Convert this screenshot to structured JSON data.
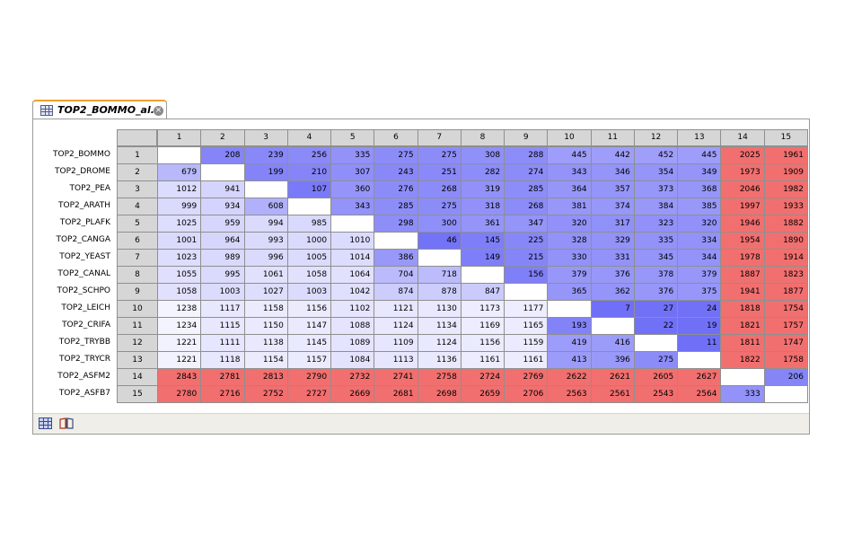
{
  "editor_tab": {
    "title": "TOP2_BOMMO_al...",
    "icon": "table-icon",
    "close_icon": "close-icon"
  },
  "matrix": {
    "columns": [
      "1",
      "2",
      "3",
      "4",
      "5",
      "6",
      "7",
      "8",
      "9",
      "10",
      "11",
      "12",
      "13",
      "14",
      "15"
    ],
    "rows": [
      {
        "label": "TOP2_BOMMO",
        "index": "1",
        "values": [
          null,
          208,
          239,
          256,
          335,
          275,
          275,
          308,
          288,
          445,
          442,
          452,
          445,
          2025,
          1961
        ]
      },
      {
        "label": "TOP2_DROME",
        "index": "2",
        "values": [
          679,
          null,
          199,
          210,
          307,
          243,
          251,
          282,
          274,
          343,
          346,
          354,
          349,
          1973,
          1909
        ]
      },
      {
        "label": "TOP2_PEA",
        "index": "3",
        "values": [
          1012,
          941,
          null,
          107,
          360,
          276,
          268,
          319,
          285,
          364,
          357,
          373,
          368,
          2046,
          1982
        ]
      },
      {
        "label": "TOP2_ARATH",
        "index": "4",
        "values": [
          999,
          934,
          608,
          null,
          343,
          285,
          275,
          318,
          268,
          381,
          374,
          384,
          385,
          1997,
          1933
        ]
      },
      {
        "label": "TOP2_PLAFK",
        "index": "5",
        "values": [
          1025,
          959,
          994,
          985,
          null,
          298,
          300,
          361,
          347,
          320,
          317,
          323,
          320,
          1946,
          1882
        ]
      },
      {
        "label": "TOP2_CANGA",
        "index": "6",
        "values": [
          1001,
          964,
          993,
          1000,
          1010,
          null,
          46,
          145,
          225,
          328,
          329,
          335,
          334,
          1954,
          1890
        ]
      },
      {
        "label": "TOP2_YEAST",
        "index": "7",
        "values": [
          1023,
          989,
          996,
          1005,
          1014,
          386,
          null,
          149,
          215,
          330,
          331,
          345,
          344,
          1978,
          1914
        ]
      },
      {
        "label": "TOP2_CANAL",
        "index": "8",
        "values": [
          1055,
          995,
          1061,
          1058,
          1064,
          704,
          718,
          null,
          156,
          379,
          376,
          378,
          379,
          1887,
          1823
        ]
      },
      {
        "label": "TOP2_SCHPO",
        "index": "9",
        "values": [
          1058,
          1003,
          1027,
          1003,
          1042,
          874,
          878,
          847,
          null,
          365,
          362,
          376,
          375,
          1941,
          1877
        ]
      },
      {
        "label": "TOP2_LEICH",
        "index": "10",
        "values": [
          1238,
          1117,
          1158,
          1156,
          1102,
          1121,
          1130,
          1173,
          1177,
          null,
          7,
          27,
          24,
          1818,
          1754
        ]
      },
      {
        "label": "TOP2_CRIFA",
        "index": "11",
        "values": [
          1234,
          1115,
          1150,
          1147,
          1088,
          1124,
          1134,
          1169,
          1165,
          193,
          null,
          22,
          19,
          1821,
          1757
        ]
      },
      {
        "label": "TOP2_TRYBB",
        "index": "12",
        "values": [
          1221,
          1111,
          1138,
          1145,
          1089,
          1109,
          1124,
          1156,
          1159,
          419,
          416,
          null,
          11,
          1811,
          1747
        ]
      },
      {
        "label": "TOP2_TRYCR",
        "index": "13",
        "values": [
          1221,
          1118,
          1154,
          1157,
          1084,
          1113,
          1136,
          1161,
          1161,
          413,
          396,
          275,
          null,
          1822,
          1758
        ]
      },
      {
        "label": "TOP2_ASFM2",
        "index": "14",
        "values": [
          2843,
          2781,
          2813,
          2790,
          2732,
          2741,
          2758,
          2724,
          2769,
          2622,
          2621,
          2605,
          2627,
          null,
          206
        ]
      },
      {
        "label": "TOP2_ASFB7",
        "index": "15",
        "values": [
          2780,
          2716,
          2752,
          2727,
          2669,
          2681,
          2698,
          2659,
          2706,
          2563,
          2561,
          2543,
          2564,
          333,
          null
        ]
      }
    ]
  },
  "colors": {
    "low": "#6f6ff7",
    "mid": "#ffffff",
    "high": "#f26f6f",
    "header": "#d6d6d6"
  },
  "footer_tabs": [
    {
      "name": "table-view-tab",
      "icon": "table-icon"
    },
    {
      "name": "annotation-view-tab",
      "icon": "book-icon"
    }
  ]
}
